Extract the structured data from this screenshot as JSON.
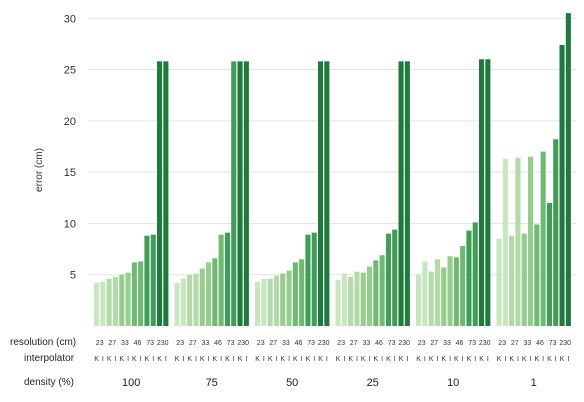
{
  "chart_data": {
    "type": "bar",
    "ylabel": "error (cm)",
    "ylim": [
      0,
      31
    ],
    "yticks": [
      5,
      10,
      15,
      20,
      25,
      30
    ],
    "grid": true,
    "row_labels": {
      "resolution": "resolution (cm)",
      "interpolator": "interpolator",
      "density": "density (%)"
    },
    "resolutions": [
      "23",
      "27",
      "33",
      "46",
      "73",
      "230"
    ],
    "interpolators": [
      "K",
      "I"
    ],
    "groups": [
      {
        "density": "100",
        "values": [
          4.2,
          4.3,
          4.6,
          4.8,
          5.0,
          5.2,
          6.2,
          6.3,
          8.8,
          8.9,
          25.8,
          25.8
        ]
      },
      {
        "density": "75",
        "values": [
          4.2,
          4.6,
          5.0,
          5.1,
          5.6,
          6.2,
          6.6,
          8.9,
          9.1,
          25.8,
          25.8,
          25.8
        ]
      },
      {
        "density": "50",
        "values": [
          4.3,
          4.6,
          4.6,
          4.9,
          5.1,
          5.4,
          6.2,
          6.5,
          8.9,
          9.1,
          25.8,
          25.8
        ]
      },
      {
        "density": "25",
        "values": [
          4.5,
          5.1,
          4.8,
          5.3,
          5.2,
          5.8,
          6.4,
          6.9,
          9.0,
          9.4,
          25.8,
          25.8
        ]
      },
      {
        "density": "10",
        "values": [
          5.0,
          6.3,
          5.3,
          6.5,
          5.7,
          6.8,
          6.7,
          7.8,
          9.3,
          10.1,
          26.0,
          26.0
        ]
      },
      {
        "density": "1",
        "values": [
          8.5,
          16.3,
          8.8,
          16.4,
          9.0,
          16.5,
          9.9,
          17.0,
          12.0,
          18.2,
          27.4,
          30.5
        ]
      }
    ],
    "colors": [
      "#c8e6bf",
      "#b2dba8",
      "#94cd8c",
      "#6fba73",
      "#3f9d57",
      "#1f7a3e",
      "#0d5a2c"
    ]
  }
}
